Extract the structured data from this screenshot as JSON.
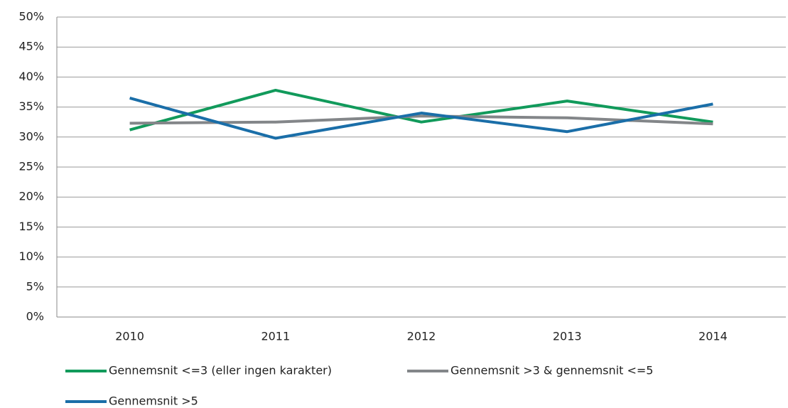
{
  "chart_data": {
    "type": "line",
    "categories": [
      "2010",
      "2011",
      "2012",
      "2013",
      "2014"
    ],
    "series": [
      {
        "name": "Gennemsnit <=3 (eller ingen karakter)",
        "color": "#119a5b",
        "values": [
          31.2,
          37.8,
          32.5,
          36.0,
          32.5
        ]
      },
      {
        "name": "Gennemsnit >3 & gennemsnit <=5",
        "color": "#838689",
        "values": [
          32.3,
          32.5,
          33.5,
          33.2,
          32.2
        ]
      },
      {
        "name": "Gennemsnit >5",
        "color": "#1a6ea8",
        "values": [
          36.5,
          29.8,
          34.0,
          30.9,
          35.5
        ]
      }
    ],
    "ylim": [
      0,
      50
    ],
    "yticks": [
      {
        "value": 0,
        "label": "0%"
      },
      {
        "value": 5,
        "label": "5%"
      },
      {
        "value": 10,
        "label": "10%"
      },
      {
        "value": 15,
        "label": "15%"
      },
      {
        "value": 20,
        "label": "20%"
      },
      {
        "value": 25,
        "label": "25%"
      },
      {
        "value": 30,
        "label": "30%"
      },
      {
        "value": 35,
        "label": "35%"
      },
      {
        "value": 40,
        "label": "40%"
      },
      {
        "value": 45,
        "label": "45%"
      },
      {
        "value": 50,
        "label": "50%"
      }
    ],
    "grid": true,
    "legend": "bottom"
  }
}
